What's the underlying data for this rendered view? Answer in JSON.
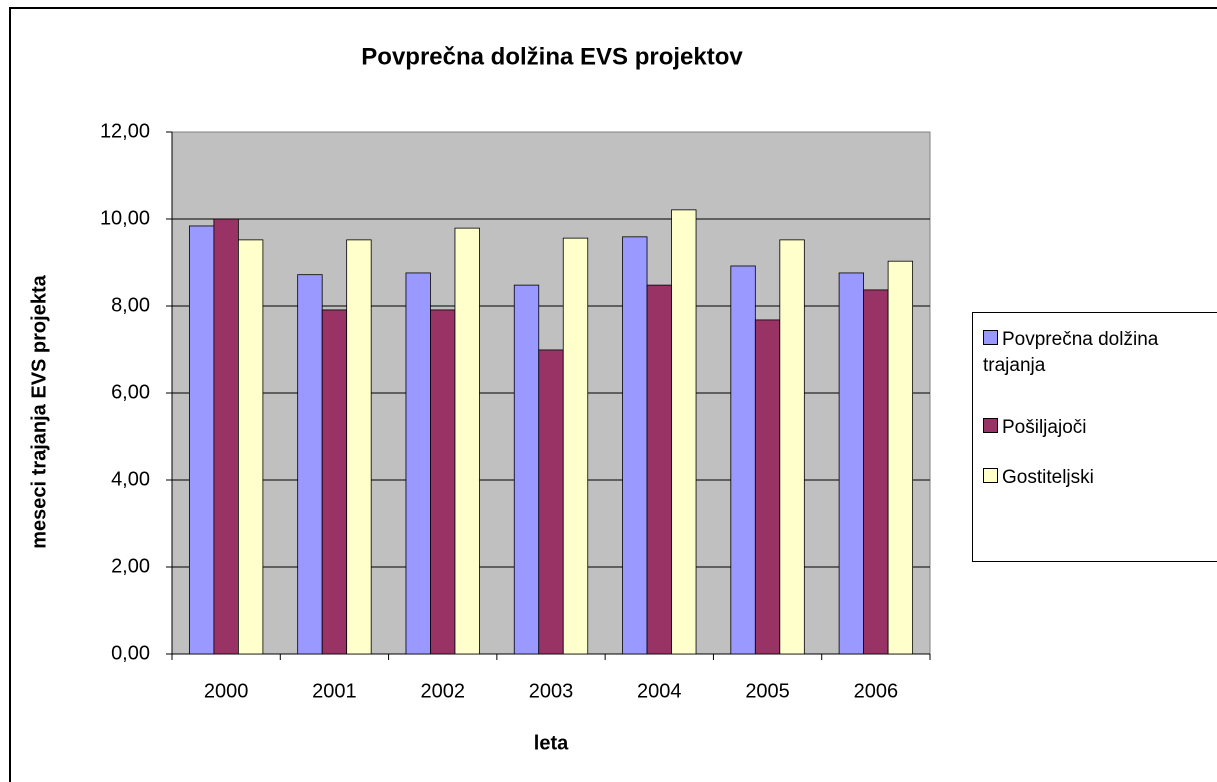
{
  "chart_data": {
    "type": "bar",
    "title": "Povprečna dolžina EVS projektov",
    "x_label": "leta",
    "y_label": "meseci trajanja EVS projekta",
    "categories": [
      "2000",
      "2001",
      "2002",
      "2003",
      "2004",
      "2005",
      "2006"
    ],
    "series": [
      {
        "name": "Povprečna dolžina trajanja",
        "color": "#9999ff",
        "values": [
          9.84,
          8.72,
          8.76,
          8.48,
          9.59,
          8.92,
          8.76
        ]
      },
      {
        "name": "Pošiljajoči",
        "color": "#993366",
        "values": [
          10.0,
          7.91,
          7.91,
          6.99,
          8.48,
          7.68,
          8.37
        ]
      },
      {
        "name": "Gostiteljski",
        "color": "#ffffcc",
        "values": [
          9.52,
          9.52,
          9.79,
          9.56,
          10.21,
          9.52,
          9.03
        ]
      }
    ],
    "ylim": [
      0,
      12
    ],
    "yticks": [
      {
        "value": 0,
        "label": "0,00"
      },
      {
        "value": 2,
        "label": "2,00"
      },
      {
        "value": 4,
        "label": "4,00"
      },
      {
        "value": 6,
        "label": "6,00"
      },
      {
        "value": 8,
        "label": "8,00"
      },
      {
        "value": 10,
        "label": "10,00"
      },
      {
        "value": 12,
        "label": "12,00"
      }
    ],
    "grid": true,
    "legend": "right"
  }
}
